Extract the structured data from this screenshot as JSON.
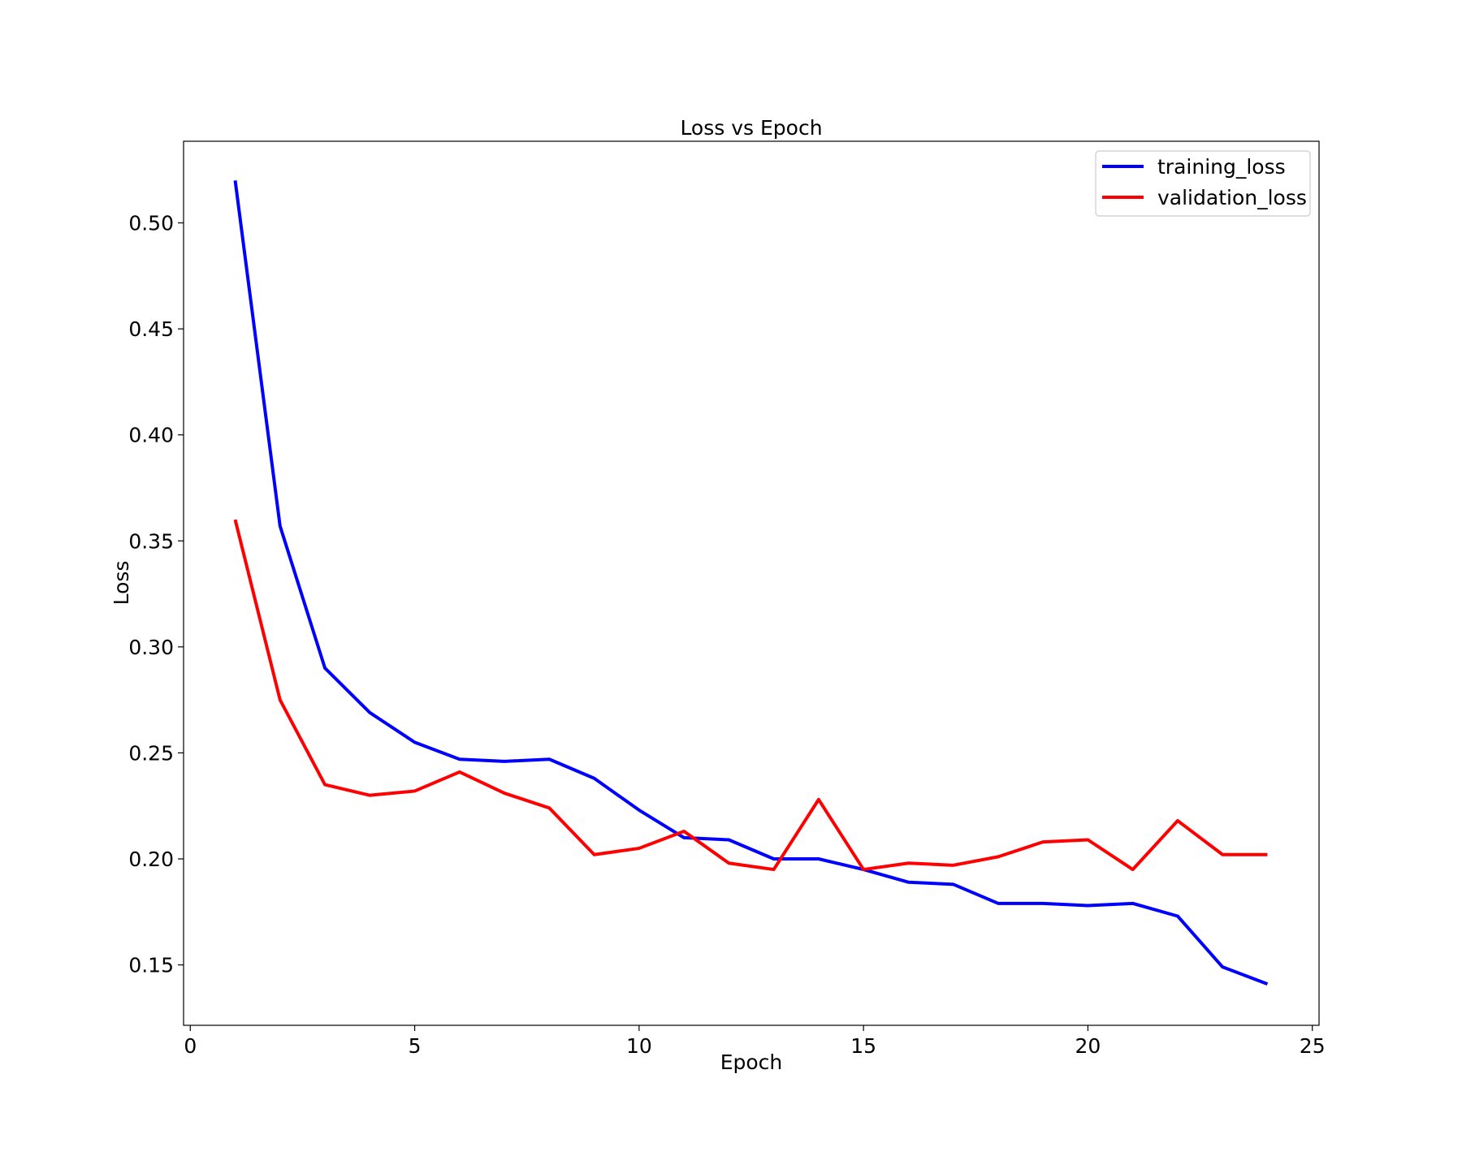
{
  "chart_data": {
    "type": "line",
    "title": "Loss vs Epoch",
    "xlabel": "Epoch",
    "ylabel": "Loss",
    "x": [
      1,
      2,
      3,
      4,
      5,
      6,
      7,
      8,
      9,
      10,
      11,
      12,
      13,
      14,
      15,
      16,
      17,
      18,
      19,
      20,
      21,
      22,
      23,
      24
    ],
    "series": [
      {
        "name": "training_loss",
        "color": "#0000ff",
        "values": [
          0.52,
          0.357,
          0.29,
          0.269,
          0.255,
          0.247,
          0.246,
          0.247,
          0.238,
          0.223,
          0.21,
          0.209,
          0.2,
          0.2,
          0.195,
          0.189,
          0.188,
          0.179,
          0.179,
          0.178,
          0.179,
          0.173,
          0.149,
          0.141
        ]
      },
      {
        "name": "validation_loss",
        "color": "#ff0000",
        "values": [
          0.36,
          0.275,
          0.235,
          0.23,
          0.232,
          0.241,
          0.231,
          0.224,
          0.202,
          0.205,
          0.213,
          0.198,
          0.195,
          0.228,
          0.195,
          0.198,
          0.197,
          0.201,
          0.208,
          0.209,
          0.195,
          0.218,
          0.202,
          0.202
        ]
      }
    ],
    "xlim": [
      -0.15,
      25.15
    ],
    "ylim": [
      0.1215,
      0.5385
    ],
    "xticks": [
      0,
      5,
      10,
      15,
      20,
      25
    ],
    "xtick_labels": [
      "0",
      "5",
      "10",
      "15",
      "20",
      "25"
    ],
    "yticks": [
      0.15,
      0.2,
      0.25,
      0.3,
      0.35,
      0.4,
      0.45,
      0.5
    ],
    "ytick_labels": [
      "0.15",
      "0.20",
      "0.25",
      "0.30",
      "0.35",
      "0.40",
      "0.45",
      "0.50"
    ],
    "grid": false,
    "legend_position": "top-right"
  }
}
